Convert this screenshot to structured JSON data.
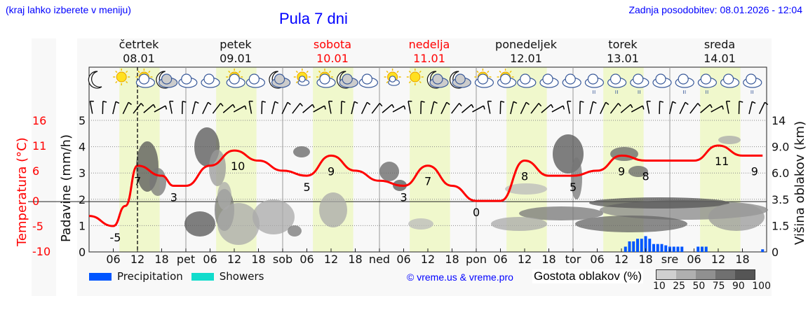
{
  "header": {
    "note": "(kraj lahko izberete v meniju)",
    "title": "Pula 7 dni",
    "updated": "Zadnja posodobitev: 08.01.2026 - 12:04"
  },
  "days": [
    {
      "name": "četrtek",
      "date": "08.01",
      "weekend": false
    },
    {
      "name": "petek",
      "date": "09.01",
      "weekend": false
    },
    {
      "name": "sobota",
      "date": "10.01",
      "weekend": true
    },
    {
      "name": "nedelja",
      "date": "11.01",
      "weekend": true
    },
    {
      "name": "ponedeljek",
      "date": "12.01",
      "weekend": false
    },
    {
      "name": "torek",
      "date": "13.01",
      "weekend": false
    },
    {
      "name": "sreda",
      "date": "14.01",
      "weekend": false
    }
  ],
  "weather_icons": [
    "moon",
    "sun",
    "sun-cloud",
    "moon-cloud",
    "cloudy",
    "cloudy",
    "sun-cloud",
    "cloudy",
    "moon-cloud",
    "sun-small-cloud",
    "sun-cloud",
    "moon-cloud",
    "cloudy",
    "sun-small-cloud",
    "sun",
    "moon-cloud",
    "moon-cloud",
    "sun-cloud",
    "sun-cloud",
    "cloudy",
    "cloudy",
    "cloudy",
    "cloudy-rain",
    "cloudy-rain",
    "cloudy-rain",
    "cloudy",
    "cloudy-rain",
    "cloudy-rain",
    "cloudy",
    "cloudy-rain"
  ],
  "axes": {
    "temp_label": "Temperatura (°C)",
    "precip_label": "Padavine (mm/h)",
    "cloud_label": "Višina oblakov (km)",
    "temp_ticks": [
      "16",
      "11",
      "6",
      "0",
      "-5",
      "-10"
    ],
    "precip_ticks": [
      "5",
      "4",
      "3",
      "2",
      "1",
      "0"
    ],
    "cloud_ticks": [
      "14",
      "9.0",
      "6.0",
      "3.5",
      "1.5",
      "0"
    ],
    "x_ticks": [
      "06",
      "12",
      "18",
      "pet",
      "06",
      "12",
      "18",
      "sob",
      "06",
      "12",
      "18",
      "ned",
      "06",
      "12",
      "18",
      "pon",
      "06",
      "12",
      "18",
      "tor",
      "06",
      "12",
      "18",
      "sre",
      "06",
      "12",
      "18"
    ]
  },
  "legend": {
    "precipitation": "Precipitation",
    "showers": "Showers",
    "precip_color": "#0055ff",
    "showers_color": "#11dccc",
    "credit": "© vreme.us & vreme.pro",
    "density_label": "Gostota oblakov (%)",
    "density_ticks": [
      "10",
      "25",
      "50",
      "75",
      "90",
      "100"
    ],
    "density_colors": [
      "#d0d0d0",
      "#b0b0b0",
      "#909090",
      "#707070",
      "#555555"
    ]
  },
  "chart_data": {
    "type": "line",
    "title": "Pula 7 dni",
    "xlabel": "",
    "ylabel": "Temperatura (°C)",
    "ylim": [
      -10,
      16
    ],
    "grid": true,
    "x": [
      "08.01 00",
      "08.01 06",
      "08.01 09",
      "08.01 12",
      "08.01 18",
      "08.01 21",
      "09.01 00",
      "09.01 06",
      "09.01 12",
      "09.01 18",
      "10.01 00",
      "10.01 06",
      "10.01 12",
      "10.01 18",
      "11.01 00",
      "11.01 06",
      "11.01 12",
      "11.01 18",
      "12.01 00",
      "12.01 06",
      "12.01 12",
      "12.01 18",
      "13.01 00",
      "13.01 06",
      "13.01 12",
      "13.01 18",
      "14.01 00",
      "14.01 06",
      "14.01 12",
      "14.01 18",
      "14.01 23"
    ],
    "series": [
      {
        "name": "Temperatura",
        "color": "#ff0000",
        "values": [
          -3,
          -5,
          -1,
          7,
          5,
          3,
          3,
          7,
          10,
          8,
          6,
          5,
          9,
          6,
          4,
          3,
          7,
          3,
          0,
          0,
          8,
          5,
          5,
          6,
          9,
          8,
          8,
          8,
          11,
          9,
          9
        ]
      }
    ],
    "labeled_extremes": [
      {
        "x": "08.01 06",
        "value": -5
      },
      {
        "x": "08.01 12",
        "value": 7
      },
      {
        "x": "08.01 21",
        "value": 3
      },
      {
        "x": "09.01 12",
        "value": 10
      },
      {
        "x": "10.01 06",
        "value": 5
      },
      {
        "x": "10.01 12",
        "value": 9
      },
      {
        "x": "11.01 06",
        "value": 3
      },
      {
        "x": "11.01 12",
        "value": 7
      },
      {
        "x": "12.01 00",
        "value": 0
      },
      {
        "x": "12.01 12",
        "value": 8
      },
      {
        "x": "13.01 00",
        "value": 5
      },
      {
        "x": "13.01 12",
        "value": 9
      },
      {
        "x": "13.01 18",
        "value": 8
      },
      {
        "x": "14.01 12",
        "value": 11
      },
      {
        "x": "14.01 21",
        "value": 9
      }
    ],
    "precipitation_mm_h": {
      "color": "#0055ff",
      "x": [
        "13.01 13",
        "13.01 14",
        "13.01 15",
        "13.01 16",
        "13.01 17",
        "13.01 18",
        "13.01 19",
        "13.01 20",
        "13.01 21",
        "13.01 22",
        "13.01 23",
        "14.01 00",
        "14.01 01",
        "14.01 02",
        "14.01 03",
        "14.01 07",
        "14.01 08",
        "14.01 09",
        "14.01 23"
      ],
      "values": [
        0.2,
        0.4,
        0.4,
        0.5,
        0.5,
        0.6,
        0.5,
        0.3,
        0.3,
        0.3,
        0.25,
        0.2,
        0.2,
        0.2,
        0.2,
        0.2,
        0.2,
        0.2,
        0.1
      ]
    },
    "secondary_axes": {
      "precip_ylim": [
        0,
        5
      ],
      "cloud_height_km_ticks": [
        0,
        1.5,
        3.5,
        6.0,
        9.0,
        14
      ]
    }
  }
}
